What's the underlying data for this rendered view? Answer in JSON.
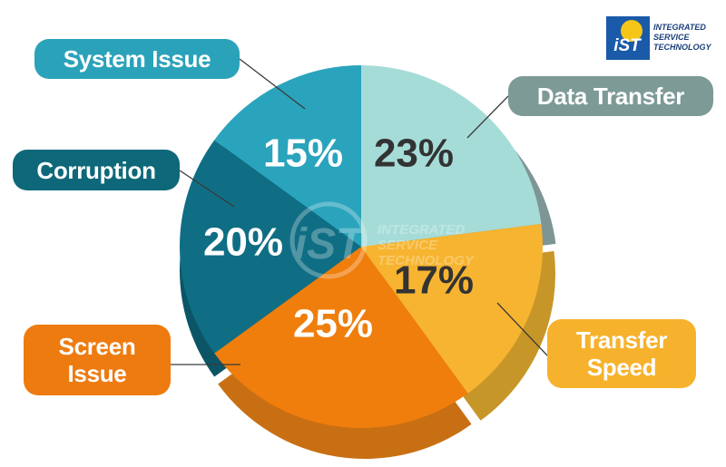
{
  "chart_data": {
    "type": "pie",
    "title": "",
    "slices": [
      {
        "label": "Data Transfer",
        "value": 23,
        "value_label": "23%",
        "color": "#a6dcd8",
        "side_color": "#7d9595",
        "label_color": "#333333",
        "box_color": "#7d9a97"
      },
      {
        "label": "Transfer Speed",
        "value": 17,
        "value_label": "17%",
        "color": "#f7b430",
        "side_color": "#c79628",
        "label_color": "#333333",
        "box_color": "#f6b22c"
      },
      {
        "label": "Screen Issue",
        "value": 25,
        "value_label": "25%",
        "color": "#f07e0c",
        "side_color": "#c96f13",
        "label_color": "#ffffff",
        "box_color": "#ee7b10"
      },
      {
        "label": "Corruption",
        "value": 20,
        "value_label": "20%",
        "color": "#0f6e84",
        "side_color": "#0b5566",
        "label_color": "#ffffff",
        "box_color": "#0e6879"
      },
      {
        "label": "System Issue",
        "value": 15,
        "value_label": "15%",
        "color": "#2aa4bc",
        "side_color": "#1e7c8e",
        "label_color": "#ffffff",
        "box_color": "#2aa2ba"
      }
    ]
  },
  "watermark": {
    "logo_text": "iST",
    "lines": [
      "INTEGRATED",
      "SERVICE",
      "TECHNOLOGY"
    ]
  },
  "logo": {
    "text": "iST",
    "lines": [
      "INTEGRATED",
      "SERVICE",
      "TECHNOLOGY"
    ],
    "color": "#1a5aa8",
    "accent": "#f5c518"
  }
}
